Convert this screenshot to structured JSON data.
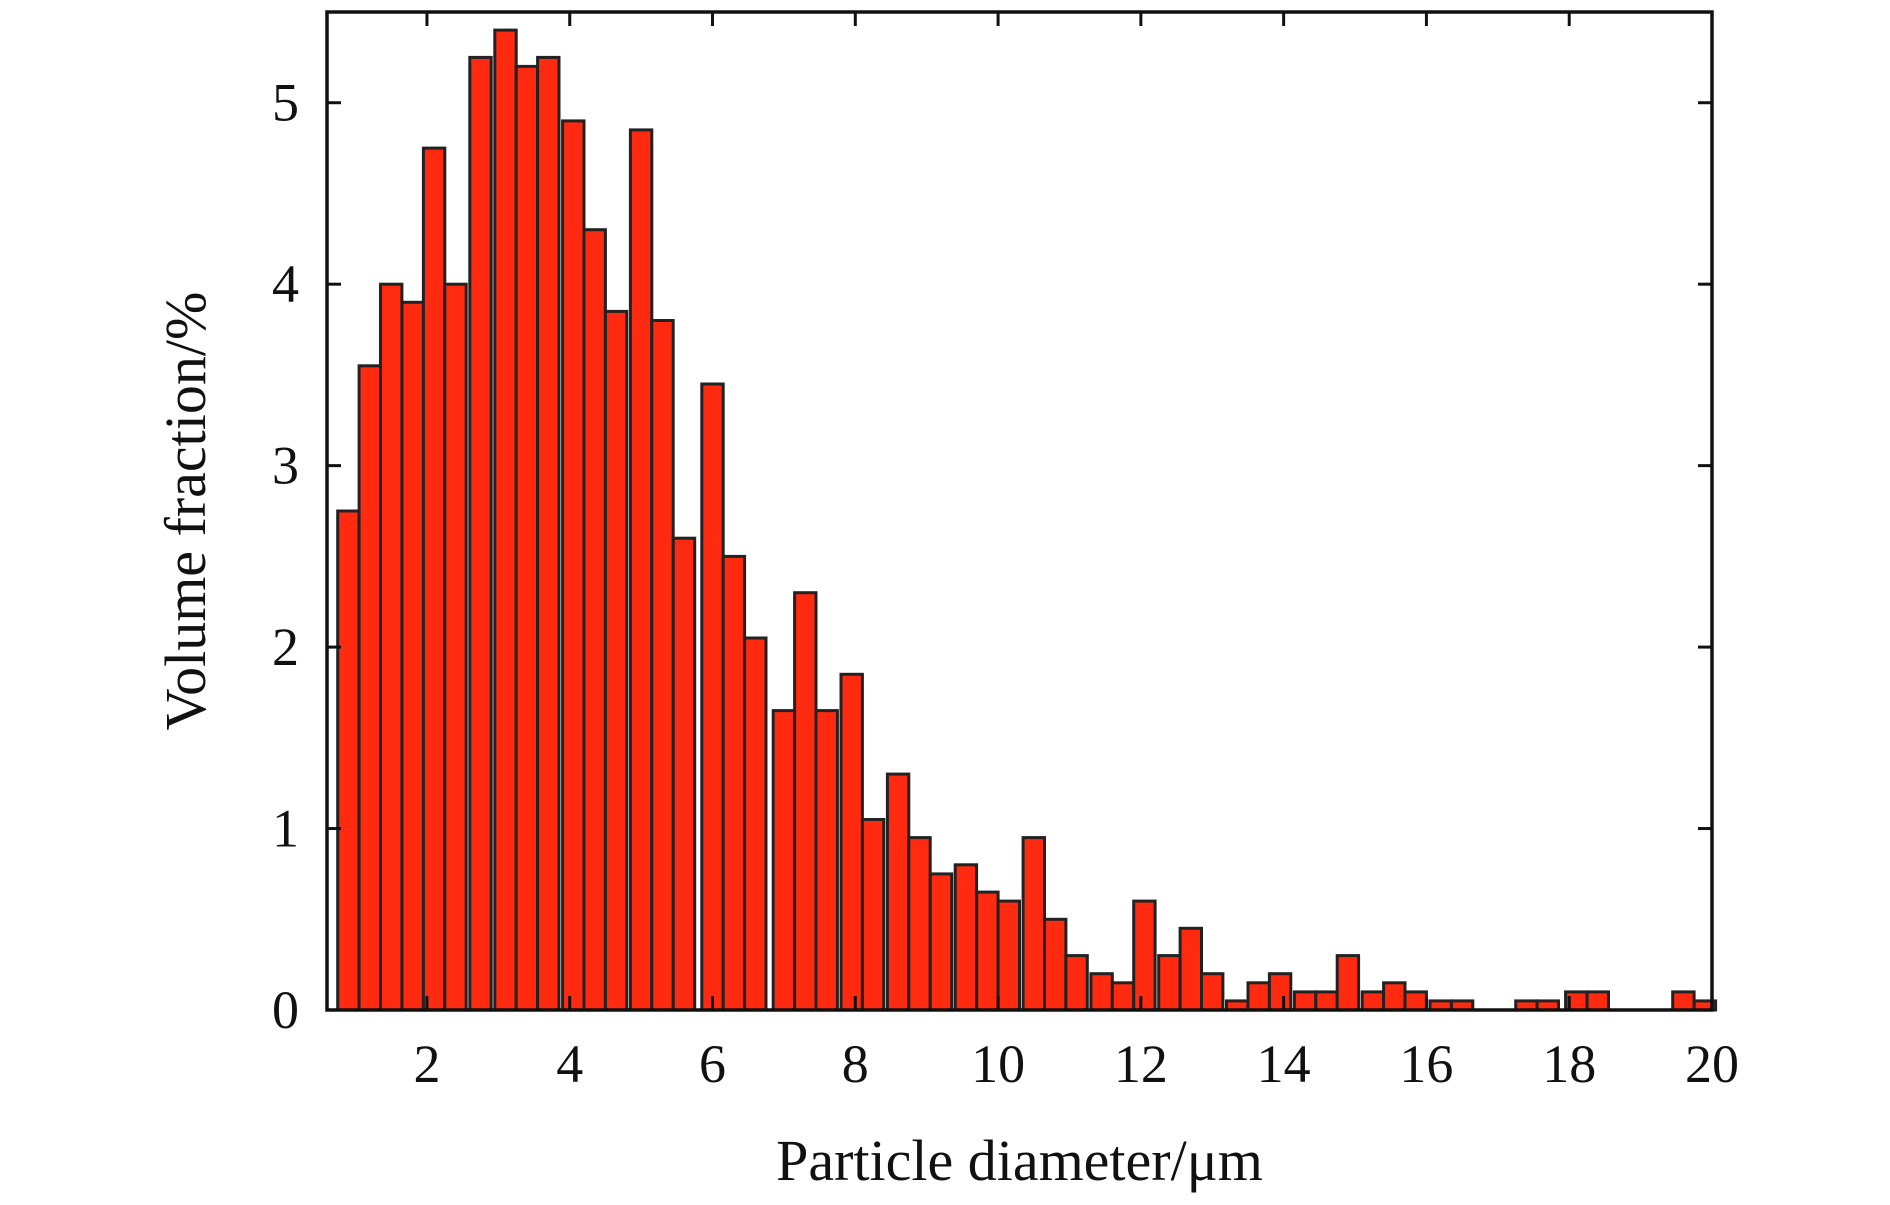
{
  "chart_data": {
    "type": "bar",
    "title": "",
    "xlabel": "Particle diameter/μm",
    "ylabel": "Volume fraction/%",
    "xlim": [
      0.6,
      20
    ],
    "ylim": [
      0,
      5.5
    ],
    "bar_width": 0.3,
    "bar_color": "#ff2a0f",
    "grid": false,
    "x_ticks": [
      2,
      4,
      6,
      8,
      10,
      12,
      14,
      16,
      18,
      20
    ],
    "y_ticks": [
      0,
      1,
      2,
      3,
      4,
      5
    ],
    "x": [
      0.9,
      1.2,
      1.5,
      1.8,
      2.1,
      2.4,
      2.75,
      3.1,
      3.4,
      3.7,
      4.05,
      4.35,
      4.65,
      5.0,
      5.3,
      5.6,
      6.0,
      6.3,
      6.6,
      7.0,
      7.3,
      7.6,
      7.95,
      8.25,
      8.6,
      8.9,
      9.2,
      9.55,
      9.85,
      10.15,
      10.5,
      10.8,
      11.1,
      11.45,
      11.75,
      12.05,
      12.4,
      12.7,
      13.0,
      13.35,
      13.65,
      13.95,
      14.3,
      14.6,
      14.9,
      15.25,
      15.55,
      15.85,
      16.2,
      16.5,
      17.4,
      17.7,
      18.1,
      18.4,
      19.6,
      19.9
    ],
    "values": [
      2.75,
      3.55,
      4.0,
      3.9,
      4.75,
      4.0,
      5.25,
      5.4,
      5.2,
      5.25,
      4.9,
      4.3,
      3.85,
      4.85,
      3.8,
      2.6,
      3.45,
      2.5,
      2.05,
      1.65,
      2.3,
      1.65,
      1.85,
      1.05,
      1.3,
      0.95,
      0.75,
      0.8,
      0.65,
      0.6,
      0.95,
      0.5,
      0.3,
      0.2,
      0.15,
      0.6,
      0.3,
      0.45,
      0.2,
      0.05,
      0.15,
      0.2,
      0.1,
      0.1,
      0.3,
      0.1,
      0.15,
      0.1,
      0.05,
      0.05,
      0.05,
      0.05,
      0.1,
      0.1,
      0.1,
      0.05
    ]
  }
}
